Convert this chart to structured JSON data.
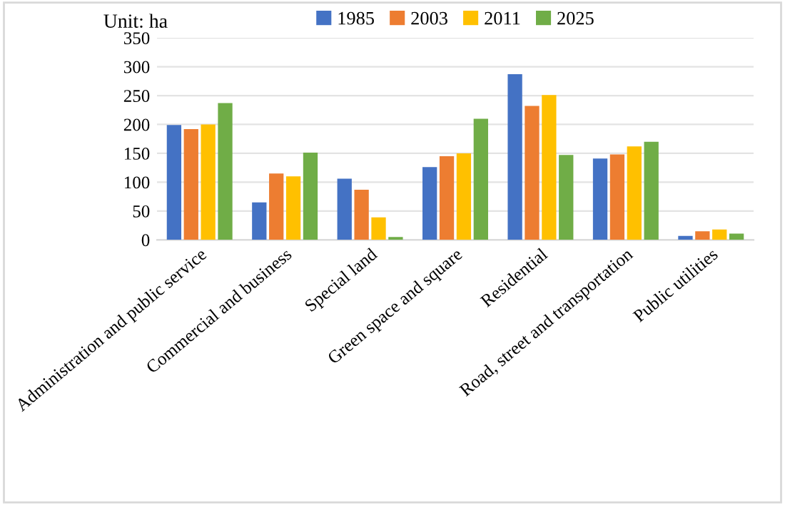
{
  "chart_data": {
    "type": "bar",
    "categories": [
      "Administration and public service",
      "Commercial and business",
      "Special land",
      "Green space and square",
      "Residential",
      "Road, street and transportation",
      "Public utilities"
    ],
    "series": [
      {
        "name": "1985",
        "color": "#4472c4",
        "values": [
          199,
          65,
          106,
          126,
          287,
          141,
          7
        ]
      },
      {
        "name": "2003",
        "color": "#ed7d31",
        "values": [
          192,
          115,
          87,
          145,
          232,
          148,
          15
        ]
      },
      {
        "name": "2011",
        "color": "#ffc000",
        "values": [
          200,
          110,
          39,
          150,
          251,
          162,
          18
        ]
      },
      {
        "name": "2025",
        "color": "#70ad47",
        "values": [
          237,
          151,
          5,
          210,
          147,
          170,
          11
        ]
      }
    ],
    "annotations": [
      "Unit: ha"
    ],
    "ylim": [
      0,
      350
    ],
    "yticks": [
      0,
      50,
      100,
      150,
      200,
      250,
      300,
      350
    ],
    "grid": "y",
    "legend": "top"
  }
}
